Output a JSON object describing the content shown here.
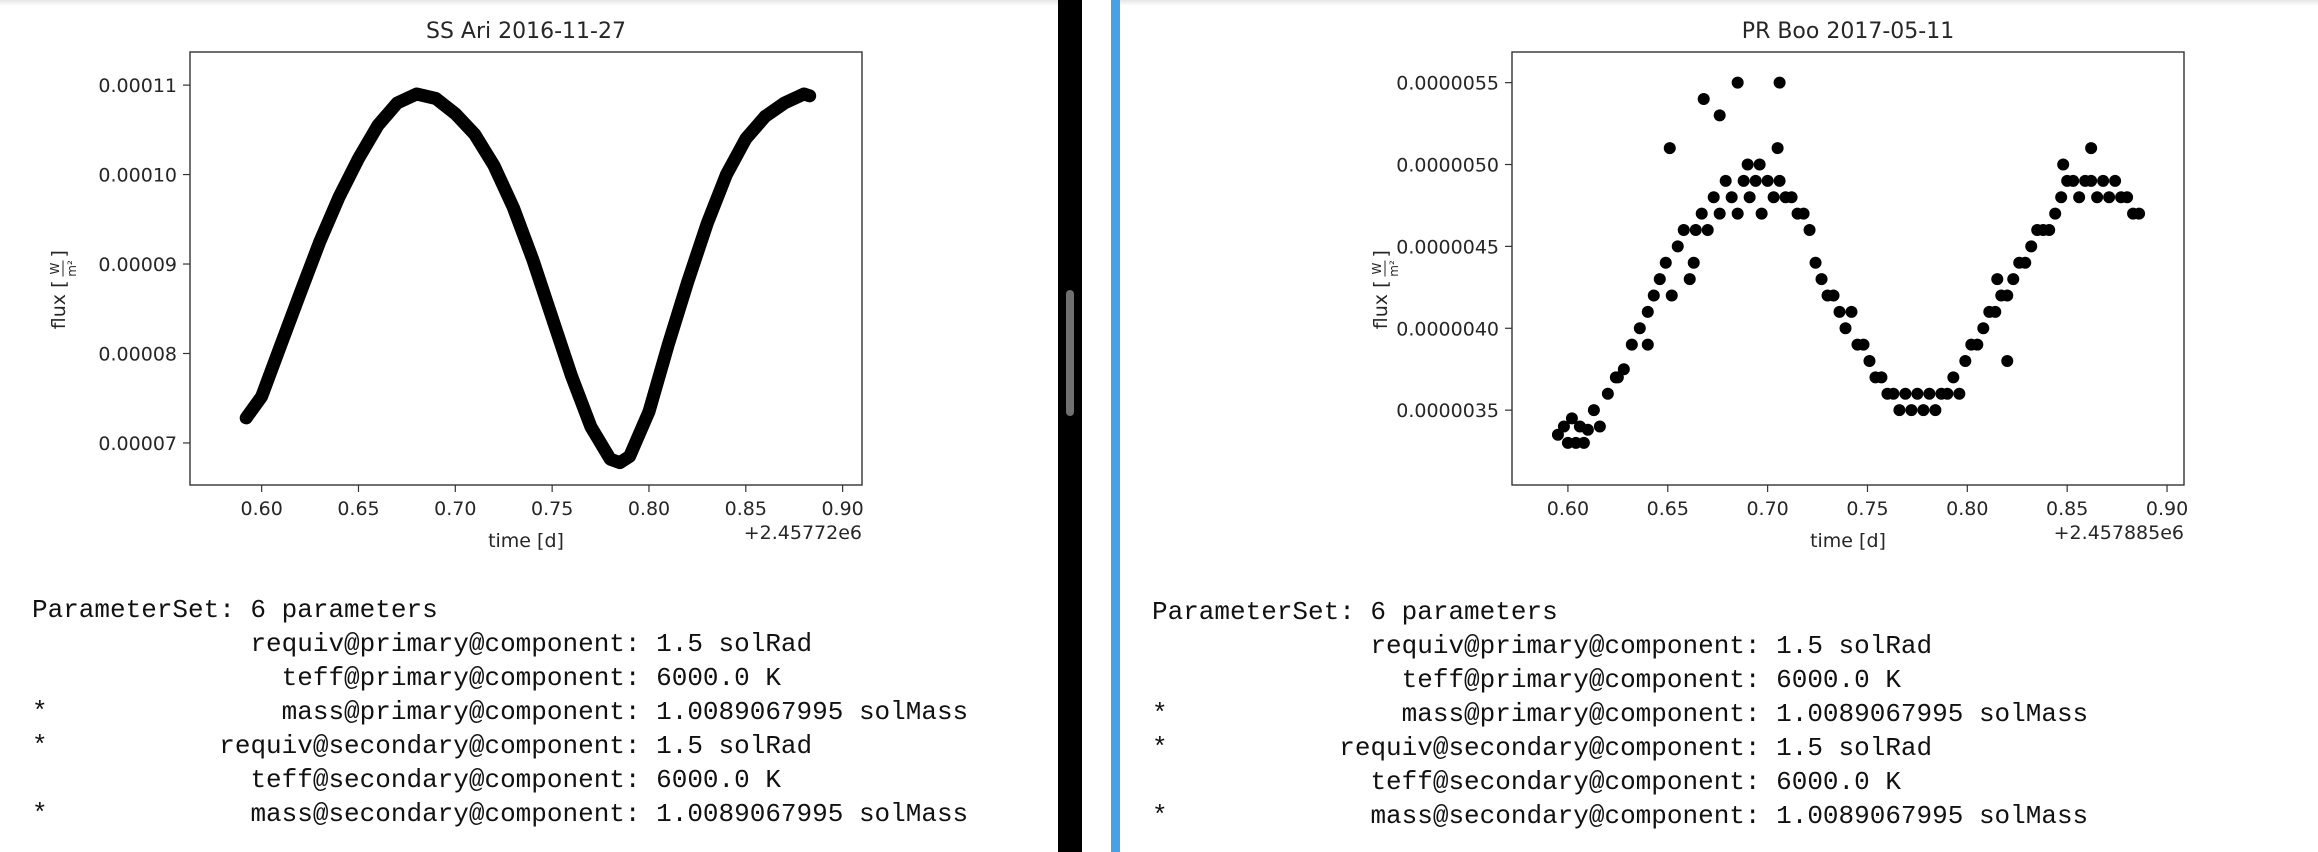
{
  "colors": {
    "focus_bar": "#4aa0e6",
    "divider": "#000000",
    "scrollbar_thumb": "#707070",
    "marker": "#000000"
  },
  "panes": [
    {
      "chart_data": {
        "type": "scatter",
        "title": "SS Ari 2016-11-27",
        "xlabel": "time [d]",
        "ylabel": "flux [W/m²]",
        "ylabel_main": "flux",
        "ylabel_unit_num": "W",
        "ylabel_unit_den": "m²",
        "x_offset_label": "+2.45772e6",
        "xlim": [
          0.563,
          0.91
        ],
        "ylim": [
          6.53e-05,
          0.0001137
        ],
        "xticks": [
          0.6,
          0.65,
          0.7,
          0.75,
          0.8,
          0.85,
          0.9
        ],
        "xtick_labels": [
          "0.60",
          "0.65",
          "0.70",
          "0.75",
          "0.80",
          "0.85",
          "0.90"
        ],
        "yticks": [
          7e-05,
          8e-05,
          9e-05,
          0.0001,
          0.00011
        ],
        "ytick_labels": [
          "0.00007",
          "0.00008",
          "0.00009",
          "0.00010",
          "0.00011"
        ],
        "grid": false,
        "series": [
          {
            "x": [
              0.592,
              0.6,
              0.61,
              0.62,
              0.63,
              0.64,
              0.65,
              0.66,
              0.67,
              0.68,
              0.69,
              0.7,
              0.71,
              0.72,
              0.73,
              0.74,
              0.75,
              0.76,
              0.77,
              0.78,
              0.785,
              0.79,
              0.8,
              0.81,
              0.82,
              0.83,
              0.84,
              0.85,
              0.86,
              0.87,
              0.88,
              0.883
            ],
            "y": [
              7.28e-05,
              7.52e-05,
              8.1e-05,
              8.68e-05,
              9.25e-05,
              9.75e-05,
              0.0001018,
              0.0001055,
              0.000108,
              0.000109,
              0.0001085,
              0.0001068,
              0.0001045,
              0.000101,
              9.63e-05,
              9.05e-05,
              8.4e-05,
              7.75e-05,
              7.18e-05,
              6.82e-05,
              6.78e-05,
              6.85e-05,
              7.35e-05,
              8.1e-05,
              8.8e-05,
              9.45e-05,
              0.0001,
              0.000104,
              0.0001065,
              0.000108,
              0.000109,
              0.0001088
            ]
          }
        ]
      },
      "params": {
        "header": "ParameterSet: 6 parameters",
        "lines": [
          {
            "star": " ",
            "key": "requiv@primary@component",
            "value": "1.5 solRad"
          },
          {
            "star": " ",
            "key": "teff@primary@component",
            "value": "6000.0 K"
          },
          {
            "star": "*",
            "key": "mass@primary@component",
            "value": "1.0089067995 solMass"
          },
          {
            "star": "*",
            "key": "requiv@secondary@component",
            "value": "1.5 solRad"
          },
          {
            "star": " ",
            "key": "teff@secondary@component",
            "value": "6000.0 K"
          },
          {
            "star": "*",
            "key": "mass@secondary@component",
            "value": "1.0089067995 solMass"
          }
        ]
      }
    },
    {
      "chart_data": {
        "type": "scatter",
        "title": "PR Boo 2017-05-11",
        "xlabel": "time [d]",
        "ylabel": "flux [W/m²]",
        "ylabel_main": "flux",
        "ylabel_unit_num": "W",
        "ylabel_unit_den": "m²",
        "x_offset_label": "+2.457885e6",
        "xlim": [
          0.572,
          0.9085
        ],
        "ylim": [
          3.043e-06,
          5.687e-06
        ],
        "xticks": [
          0.6,
          0.65,
          0.7,
          0.75,
          0.8,
          0.85,
          0.9
        ],
        "xtick_labels": [
          "0.60",
          "0.65",
          "0.70",
          "0.75",
          "0.80",
          "0.85",
          "0.90"
        ],
        "yticks": [
          3.5e-06,
          4e-06,
          4.5e-06,
          5e-06,
          5.5e-06
        ],
        "ytick_labels": [
          "0.0000035",
          "0.0000040",
          "0.0000045",
          "0.0000050",
          "0.0000055"
        ],
        "grid": false,
        "series": [
          {
            "x": [
              0.595,
              0.598,
              0.6,
              0.602,
              0.604,
              0.606,
              0.608,
              0.61,
              0.613,
              0.616,
              0.62,
              0.624,
              0.628,
              0.632,
              0.636,
              0.64,
              0.643,
              0.646,
              0.649,
              0.652,
              0.655,
              0.658,
              0.661,
              0.664,
              0.667,
              0.67,
              0.673,
              0.676,
              0.679,
              0.682,
              0.685,
              0.688,
              0.691,
              0.694,
              0.697,
              0.7,
              0.703,
              0.706,
              0.709,
              0.712,
              0.715,
              0.718,
              0.721,
              0.724,
              0.727,
              0.73,
              0.733,
              0.736,
              0.739,
              0.742,
              0.745,
              0.748,
              0.751,
              0.754,
              0.757,
              0.76,
              0.763,
              0.766,
              0.769,
              0.772,
              0.775,
              0.778,
              0.781,
              0.784,
              0.787,
              0.79,
              0.793,
              0.796,
              0.799,
              0.802,
              0.805,
              0.808,
              0.811,
              0.814,
              0.817,
              0.82,
              0.823,
              0.826,
              0.829,
              0.832,
              0.835,
              0.838,
              0.841,
              0.844,
              0.847,
              0.85,
              0.853,
              0.856,
              0.859,
              0.862,
              0.865,
              0.868,
              0.871,
              0.874,
              0.877,
              0.88,
              0.883,
              0.886,
              0.651,
              0.668,
              0.676,
              0.685,
              0.706,
              0.705,
              0.69,
              0.696,
              0.663,
              0.82,
              0.815,
              0.862,
              0.848,
              0.625,
              0.64
            ],
            "y": [
              3.35e-06,
              3.4e-06,
              3.3e-06,
              3.45e-06,
              3.3e-06,
              3.4e-06,
              3.3e-06,
              3.38e-06,
              3.5e-06,
              3.4e-06,
              3.6e-06,
              3.7e-06,
              3.75e-06,
              3.9e-06,
              4e-06,
              4.1e-06,
              4.2e-06,
              4.3e-06,
              4.4e-06,
              4.2e-06,
              4.5e-06,
              4.6e-06,
              4.3e-06,
              4.6e-06,
              4.7e-06,
              4.6e-06,
              4.8e-06,
              4.7e-06,
              4.9e-06,
              4.8e-06,
              4.7e-06,
              4.9e-06,
              4.8e-06,
              4.9e-06,
              4.7e-06,
              4.9e-06,
              4.8e-06,
              4.9e-06,
              4.8e-06,
              4.8e-06,
              4.7e-06,
              4.7e-06,
              4.6e-06,
              4.4e-06,
              4.3e-06,
              4.2e-06,
              4.2e-06,
              4.1e-06,
              4e-06,
              4.1e-06,
              3.9e-06,
              3.9e-06,
              3.8e-06,
              3.7e-06,
              3.7e-06,
              3.6e-06,
              3.6e-06,
              3.5e-06,
              3.6e-06,
              3.5e-06,
              3.6e-06,
              3.5e-06,
              3.6e-06,
              3.5e-06,
              3.6e-06,
              3.6e-06,
              3.7e-06,
              3.6e-06,
              3.8e-06,
              3.9e-06,
              3.9e-06,
              4e-06,
              4.1e-06,
              4.1e-06,
              4.2e-06,
              4.2e-06,
              4.3e-06,
              4.4e-06,
              4.4e-06,
              4.5e-06,
              4.6e-06,
              4.6e-06,
              4.6e-06,
              4.7e-06,
              4.8e-06,
              4.9e-06,
              4.9e-06,
              4.8e-06,
              4.9e-06,
              4.9e-06,
              4.8e-06,
              4.9e-06,
              4.8e-06,
              4.9e-06,
              4.8e-06,
              4.8e-06,
              4.7e-06,
              4.7e-06,
              5.1e-06,
              5.4e-06,
              5.3e-06,
              5.5e-06,
              5.5e-06,
              5.1e-06,
              5e-06,
              5e-06,
              4.4e-06,
              3.8e-06,
              4.3e-06,
              5.1e-06,
              5e-06,
              3.7e-06,
              3.9e-06
            ]
          }
        ]
      },
      "params": {
        "header": "ParameterSet: 6 parameters",
        "lines": [
          {
            "star": " ",
            "key": "requiv@primary@component",
            "value": "1.5 solRad"
          },
          {
            "star": " ",
            "key": "teff@primary@component",
            "value": "6000.0 K"
          },
          {
            "star": "*",
            "key": "mass@primary@component",
            "value": "1.0089067995 solMass"
          },
          {
            "star": "*",
            "key": "requiv@secondary@component",
            "value": "1.5 solRad"
          },
          {
            "star": " ",
            "key": "teff@secondary@component",
            "value": "6000.0 K"
          },
          {
            "star": "*",
            "key": "mass@secondary@component",
            "value": "1.0089067995 solMass"
          }
        ]
      }
    }
  ]
}
